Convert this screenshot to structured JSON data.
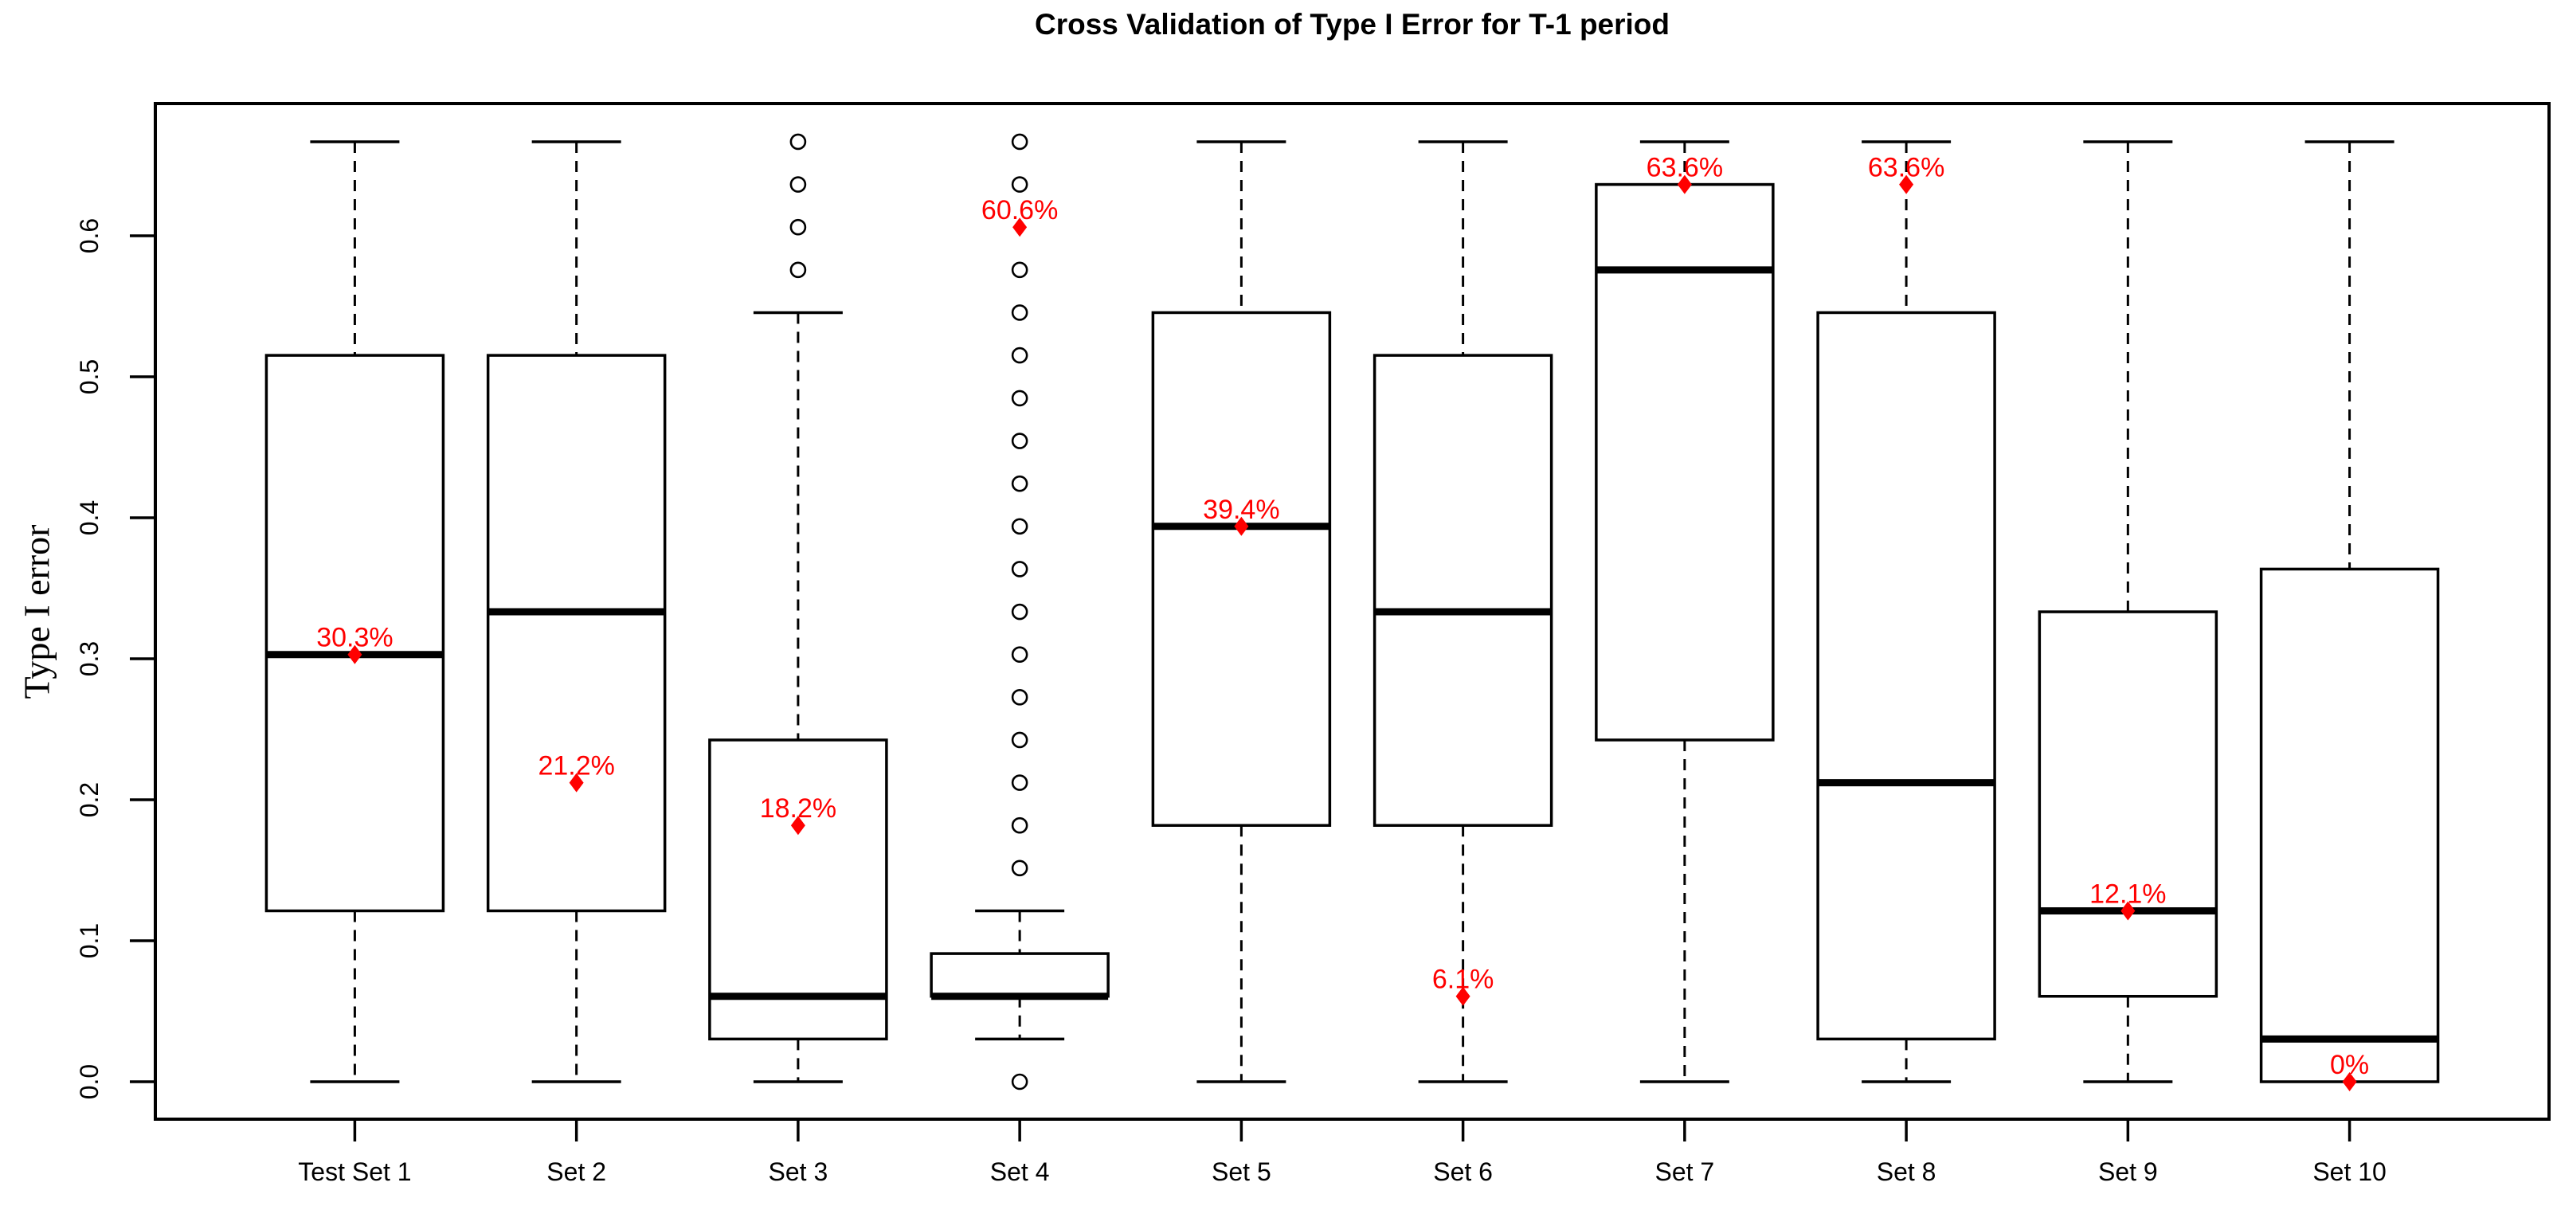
{
  "chart_data": {
    "type": "boxplot",
    "title": "Cross Validation of Type I Error for T-1 period",
    "xlabel": "",
    "ylabel": "Type I error",
    "ylim": [
      -0.0267,
      0.694
    ],
    "grid": false,
    "legend": null,
    "line_color": "#000000",
    "annotation_color": "#ff0000",
    "yticks": [
      {
        "value": 0.0,
        "label": "0.0"
      },
      {
        "value": 0.1,
        "label": "0.1"
      },
      {
        "value": 0.2,
        "label": "0.2"
      },
      {
        "value": 0.3,
        "label": "0.3"
      },
      {
        "value": 0.4,
        "label": "0.4"
      },
      {
        "value": 0.5,
        "label": "0.5"
      },
      {
        "value": 0.6,
        "label": "0.6"
      }
    ],
    "boxes": [
      {
        "category": "Test Set 1",
        "whisker_low": 0,
        "q1": 0.1212,
        "median": 0.303,
        "q3": 0.5152,
        "whisker_high": 0.6667,
        "outliers": [],
        "point": {
          "value": 0.303,
          "label": "30.3%"
        }
      },
      {
        "category": "Set 2",
        "whisker_low": 0,
        "q1": 0.1212,
        "median": 0.3333,
        "q3": 0.5152,
        "whisker_high": 0.6667,
        "outliers": [],
        "point": {
          "value": 0.2121,
          "label": "21.2%"
        }
      },
      {
        "category": "Set 3",
        "whisker_low": 0,
        "q1": 0.0303,
        "median": 0.0606,
        "q3": 0.2424,
        "whisker_high": 0.5455,
        "outliers": [
          0.5758,
          0.6061,
          0.6364,
          0.6667
        ],
        "point": {
          "value": 0.1818,
          "label": "18.2%"
        }
      },
      {
        "category": "Set 4",
        "whisker_low": 0.0303,
        "q1": 0.0606,
        "median": 0.0606,
        "q3": 0.0909,
        "whisker_high": 0.1212,
        "outliers": [
          0,
          0.1515,
          0.1818,
          0.2121,
          0.2424,
          0.2727,
          0.303,
          0.3333,
          0.3636,
          0.3939,
          0.4242,
          0.4545,
          0.4848,
          0.5152,
          0.5455,
          0.5758,
          0.6364,
          0.6667
        ],
        "point": {
          "value": 0.6061,
          "label": "60.6%"
        }
      },
      {
        "category": "Set 5",
        "whisker_low": 0,
        "q1": 0.1818,
        "median": 0.3939,
        "q3": 0.5455,
        "whisker_high": 0.6667,
        "outliers": [],
        "point": {
          "value": 0.3939,
          "label": "39.4%"
        }
      },
      {
        "category": "Set 6",
        "whisker_low": 0,
        "q1": 0.1818,
        "median": 0.3333,
        "q3": 0.5152,
        "whisker_high": 0.6667,
        "outliers": [],
        "point": {
          "value": 0.0606,
          "label": "6.1%"
        }
      },
      {
        "category": "Set 7",
        "whisker_low": 0,
        "q1": 0.2424,
        "median": 0.5758,
        "q3": 0.6364,
        "whisker_high": 0.6667,
        "outliers": [],
        "point": {
          "value": 0.6364,
          "label": "63.6%"
        }
      },
      {
        "category": "Set 8",
        "whisker_low": 0,
        "q1": 0.0303,
        "median": 0.2121,
        "q3": 0.5455,
        "whisker_high": 0.6667,
        "outliers": [],
        "point": {
          "value": 0.6364,
          "label": "63.6%"
        }
      },
      {
        "category": "Set 9",
        "whisker_low": 0,
        "q1": 0.0606,
        "median": 0.1212,
        "q3": 0.3333,
        "whisker_high": 0.6667,
        "outliers": [],
        "point": {
          "value": 0.1212,
          "label": "12.1%"
        }
      },
      {
        "category": "Set 10",
        "whisker_low": 0,
        "q1": 0,
        "median": 0.0303,
        "q3": 0.3636,
        "whisker_high": 0.6667,
        "outliers": [],
        "point": {
          "value": 0,
          "label": "0%"
        }
      }
    ]
  }
}
